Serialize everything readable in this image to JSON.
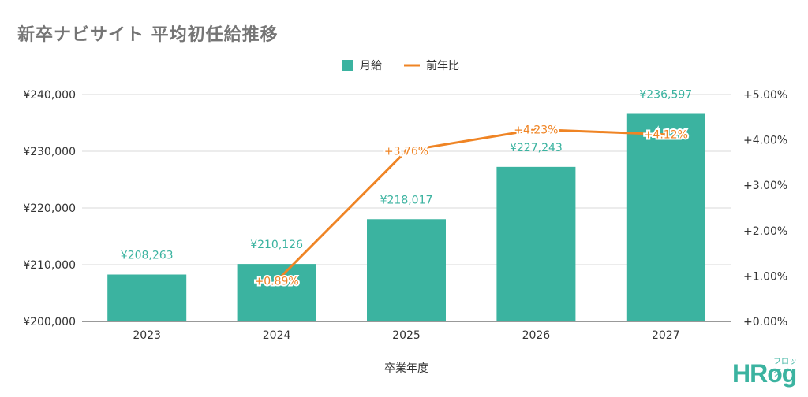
{
  "chart_title": "新卒ナビサイト 平均初任給推移",
  "logo": {
    "main": "HRog",
    "sub": "フロッグ"
  },
  "colors": {
    "bar": "#3bb3a0",
    "line": "#ef8424",
    "axis_text": "#333333",
    "grid": "#d9d9d9"
  },
  "chart_data": {
    "type": "bar",
    "title": "新卒ナビサイト 平均初任給推移",
    "xlabel": "卒業年度",
    "categories": [
      "2023",
      "2024",
      "2025",
      "2026",
      "2027"
    ],
    "series": [
      {
        "name": "月給",
        "type": "bar",
        "axis": "left",
        "values": [
          208263,
          210126,
          218017,
          227243,
          236597
        ],
        "labels": [
          "¥208,263",
          "¥210,126",
          "¥218,017",
          "¥227,243",
          "¥236,597"
        ]
      },
      {
        "name": "前年比",
        "type": "line",
        "axis": "right",
        "values": [
          null,
          0.89,
          3.76,
          4.23,
          4.12
        ],
        "labels": [
          "",
          "+0.89%",
          "+3.76%",
          "+4.23%",
          "+4.12%"
        ]
      }
    ],
    "y_left": {
      "ylim": [
        200000,
        240000
      ],
      "ticks": [
        200000,
        210000,
        220000,
        230000,
        240000
      ],
      "tick_labels": [
        "¥200,000",
        "¥210,000",
        "¥220,000",
        "¥230,000",
        "¥240,000"
      ]
    },
    "y_right": {
      "ylim": [
        0,
        5
      ],
      "ticks": [
        0,
        1,
        2,
        3,
        4,
        5
      ],
      "tick_labels": [
        "+0.00%",
        "+1.00%",
        "+2.00%",
        "+3.00%",
        "+4.00%",
        "+5.00%"
      ]
    },
    "legend_position": "top-center",
    "grid": true
  }
}
